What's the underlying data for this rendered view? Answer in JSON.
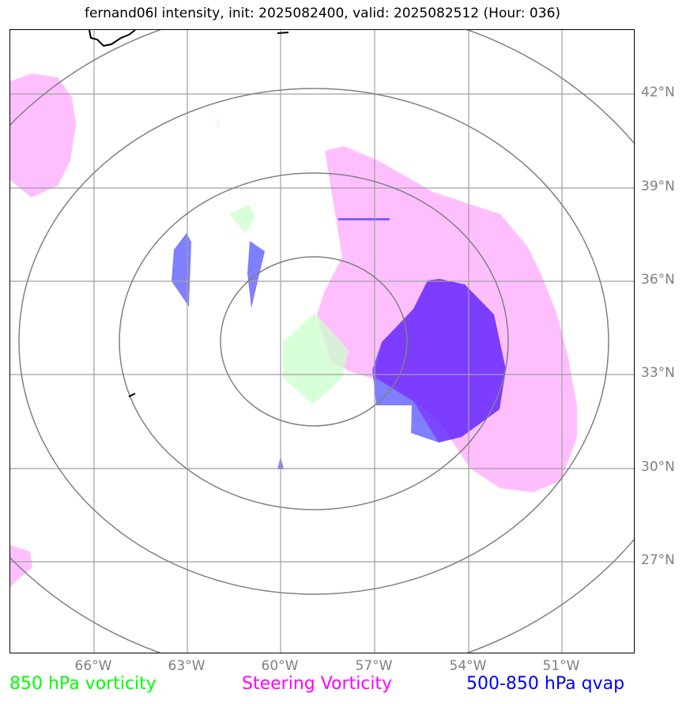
{
  "title": "fernand06l intensity, init: 2025082400, valid: 2025082512 (Hour: 036)",
  "map": {
    "lat_labels": [
      "42°N",
      "39°N",
      "36°N",
      "33°N",
      "30°N",
      "27°N"
    ],
    "lon_labels": [
      "66°W",
      "63°W",
      "60°W",
      "57°W",
      "54°W",
      "51°W"
    ],
    "colors": {
      "vorticity_850": "#ccffcc",
      "steering_vorticity": "#ffaaff",
      "qvap": "#0000ff",
      "qvap_overlap": "#7a2fff",
      "rings": "#808080",
      "gridlines": "#a0a0a0",
      "coastline": "#000000"
    }
  },
  "legend": {
    "vorticity": {
      "label": "850 hPa vorticity",
      "color": "#00ff00"
    },
    "steering": {
      "label": "Steering Vorticity",
      "color": "#ff00ff"
    },
    "qvap": {
      "label": "500-850 hPa qvap",
      "color": "#0000ff"
    }
  }
}
